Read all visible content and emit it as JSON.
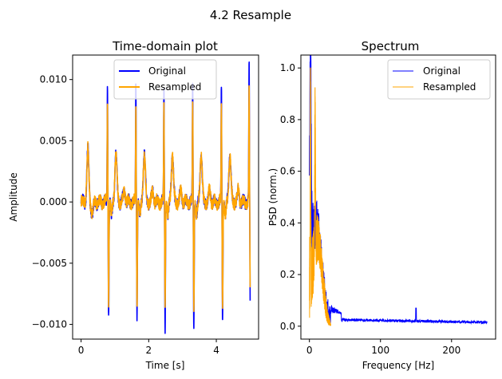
{
  "suptitle": "4.2 Resample",
  "colors": {
    "original": "#0000ff",
    "resampled": "#ffa500",
    "axes": "#000000"
  },
  "chart_data": [
    {
      "type": "line",
      "title": "Time-domain plot",
      "xlabel": "Time [s]",
      "ylabel": "Amplitude",
      "xlim": [
        -0.25,
        5.25
      ],
      "ylim": [
        -0.0112,
        0.012
      ],
      "xticks": [
        0,
        2,
        4
      ],
      "xtick_labels": [
        "0",
        "2",
        "4"
      ],
      "yticks": [
        -0.01,
        -0.005,
        0.0,
        0.005,
        0.01
      ],
      "ytick_labels": [
        "−0.010",
        "−0.005",
        "0.000",
        "0.005",
        "0.010"
      ],
      "legend": {
        "placement": "top-center",
        "entries": [
          "Original",
          "Resampled"
        ]
      },
      "beat_times": [
        0.78,
        1.62,
        2.45,
        3.3,
        4.15,
        4.97
      ],
      "beats": {
        "original": {
          "peak": [
            0.0098,
            0.0097,
            0.0093,
            0.0097,
            0.0096,
            0.011
          ],
          "trough": [
            -0.0092,
            -0.0092,
            -0.0102,
            -0.0102,
            -0.0098,
            -0.0088
          ]
        },
        "resampled": {
          "peak": [
            0.0081,
            0.008,
            0.0078,
            0.0078,
            0.0081,
            0.0093
          ],
          "trough": [
            -0.0081,
            -0.0081,
            -0.0086,
            -0.0086,
            -0.0088,
            -0.0076
          ]
        }
      },
      "series": [
        {
          "name": "Original",
          "key": "original"
        },
        {
          "name": "Resampled",
          "key": "resampled"
        }
      ]
    },
    {
      "type": "line",
      "title": "Spectrum",
      "xlabel": "Frequency [Hz]",
      "ylabel": "PSD (norm.)",
      "xlim": [
        -12,
        262
      ],
      "ylim": [
        -0.05,
        1.05
      ],
      "xticks": [
        0,
        100,
        200
      ],
      "xtick_labels": [
        "0",
        "100",
        "200"
      ],
      "yticks": [
        0.0,
        0.2,
        0.4,
        0.6,
        0.8,
        1.0
      ],
      "ytick_labels": [
        "0.0",
        "0.2",
        "0.4",
        "0.6",
        "0.8",
        "1.0"
      ],
      "legend": {
        "placement": "top-right",
        "entries": [
          "Original",
          "Resampled"
        ]
      },
      "series": [
        {
          "name": "Original",
          "key": "original",
          "x_range": [
            0,
            250
          ],
          "noise_floor": 0.02,
          "spike_hz": 150,
          "spike_val": 0.07
        },
        {
          "name": "Resampled",
          "key": "resampled",
          "x_range": [
            0,
            30
          ],
          "peak_hz": 1.5,
          "peak_val": 1.0,
          "second_peak_hz": 8,
          "second_peak_val": 0.62
        }
      ]
    }
  ]
}
